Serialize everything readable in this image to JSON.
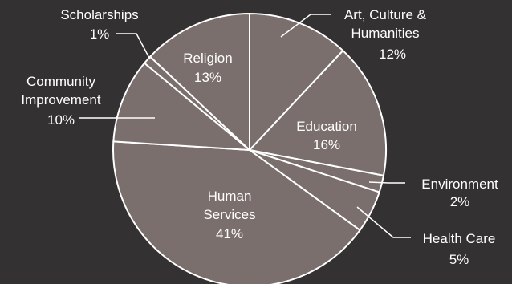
{
  "chart_data": {
    "type": "pie",
    "start_angle_deg": 0,
    "direction": "clockwise",
    "slices": [
      {
        "name": "Art, Culture & Humanities",
        "value": 12,
        "label": "12%"
      },
      {
        "name": "Education",
        "value": 16,
        "label": "16%"
      },
      {
        "name": "Environment",
        "value": 2,
        "label": "2%"
      },
      {
        "name": "Health Care",
        "value": 5,
        "label": "5%"
      },
      {
        "name": "Human Services",
        "value": 41,
        "label": "41%"
      },
      {
        "name": "Community Improvement",
        "value": 10,
        "label": "10%"
      },
      {
        "name": "Scholarships",
        "value": 1,
        "label": "1%"
      },
      {
        "name": "Religion",
        "value": 13,
        "label": "13%"
      }
    ],
    "label_texts": {
      "art": [
        "Art, Culture &",
        "Humanities",
        "12%"
      ],
      "education": [
        "Education",
        "16%"
      ],
      "environment": [
        "Environment",
        "2%"
      ],
      "health": [
        "Health Care",
        "5%"
      ],
      "human": [
        "Human",
        "Services",
        "41%"
      ],
      "community": [
        "Community",
        "Improvement",
        "10%"
      ],
      "scholarships": [
        "Scholarships",
        "1%"
      ],
      "religion": [
        "Religion",
        "13%"
      ]
    },
    "colors": {
      "background": "#333132",
      "slice_fill": "#7a6f6d",
      "stroke": "#ffffff",
      "text": "#ffffff"
    }
  }
}
